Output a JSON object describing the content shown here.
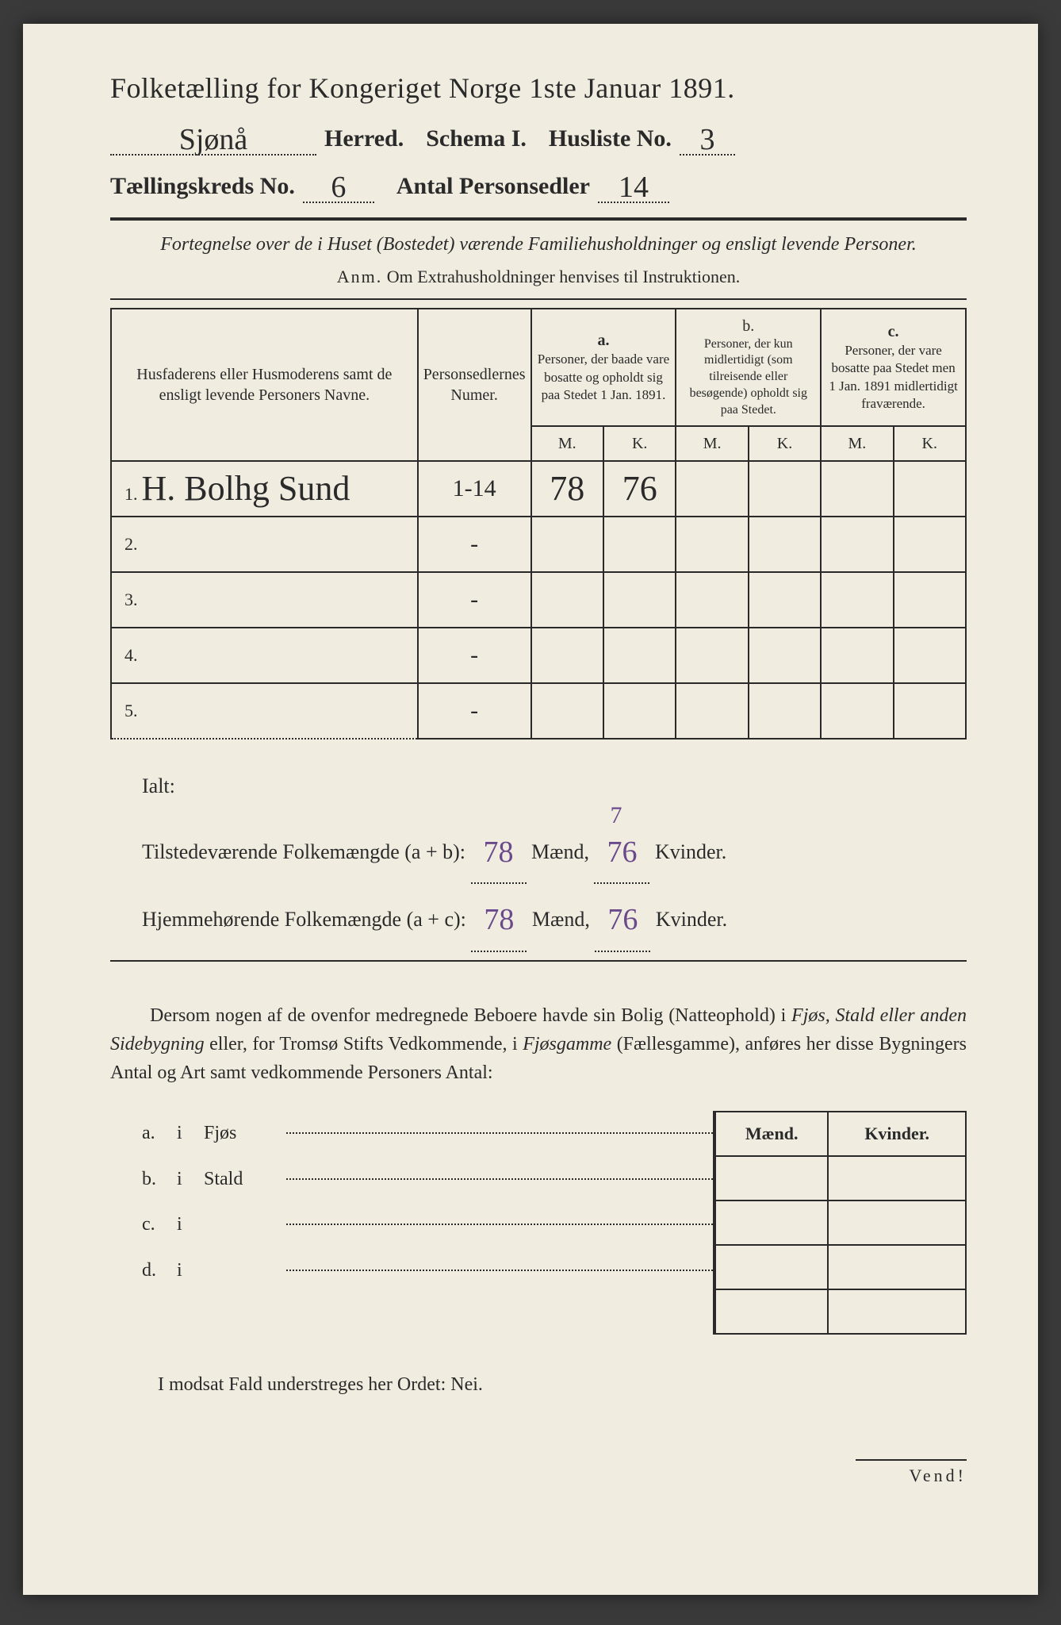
{
  "colors": {
    "paper": "#f0ede0",
    "ink": "#2a2a2a",
    "handwriting_purple": "#6a4a8a",
    "background": "#3a3a3a"
  },
  "typography": {
    "title_fontsize": 36,
    "body_fontsize": 24,
    "handwritten_fontsize": 38
  },
  "header": {
    "title": "Folketælling for Kongeriget Norge 1ste Januar 1891.",
    "herred_value": "Sjønå",
    "herred_label": "Herred.",
    "schema_label": "Schema I.",
    "husliste_label": "Husliste No.",
    "husliste_value": "3",
    "kreds_label": "Tællingskreds No.",
    "kreds_value": "6",
    "antal_label": "Antal Personsedler",
    "antal_value": "14"
  },
  "subtitle": "Fortegnelse over de i Huset (Bostedet) værende Familiehusholdninger og ensligt levende Personer.",
  "anm_label": "Anm.",
  "anm_text": "Om Extrahusholdninger henvises til Instruktionen.",
  "table": {
    "col_name": "Husfaderens eller Husmoderens samt de ensligt levende Personers Navne.",
    "col_num": "Personsedlernes Numer.",
    "col_a_label": "a.",
    "col_a": "Personer, der baade vare bosatte og opholdt sig paa Stedet 1 Jan. 1891.",
    "col_b_label": "b.",
    "col_b": "Personer, der kun midlertidigt (som tilreisende eller besøgende) opholdt sig paa Stedet.",
    "col_c_label": "c.",
    "col_c": "Personer, der vare bosatte paa Stedet men 1 Jan. 1891 midlertidigt fraværende.",
    "m": "M.",
    "k": "K.",
    "rows": [
      {
        "n": "1.",
        "name": "H. Bolhg Sund",
        "num": "1-14",
        "a_m": "78",
        "a_k": "76",
        "b_m": "",
        "b_k": "",
        "c_m": "",
        "c_k": ""
      },
      {
        "n": "2.",
        "name": "",
        "num": "-",
        "a_m": "",
        "a_k": "",
        "b_m": "",
        "b_k": "",
        "c_m": "",
        "c_k": ""
      },
      {
        "n": "3.",
        "name": "",
        "num": "-",
        "a_m": "",
        "a_k": "",
        "b_m": "",
        "b_k": "",
        "c_m": "",
        "c_k": ""
      },
      {
        "n": "4.",
        "name": "",
        "num": "-",
        "a_m": "",
        "a_k": "",
        "b_m": "",
        "b_k": "",
        "c_m": "",
        "c_k": ""
      },
      {
        "n": "5.",
        "name": "",
        "num": "-",
        "a_m": "",
        "a_k": "",
        "b_m": "",
        "b_k": "",
        "c_m": "",
        "c_k": ""
      }
    ]
  },
  "totals": {
    "ialt": "Ialt:",
    "tilstede_label": "Tilstedeværende Folkemængde (a + b):",
    "hjemme_label": "Hjemmehørende Folkemængde (a + c):",
    "maend": "Mænd,",
    "kvinder": "Kvinder.",
    "t_m": "78",
    "t_k": "76",
    "h_m": "78",
    "h_k": "76",
    "t_k_over": "7",
    "h_k_over": ""
  },
  "paragraph": {
    "text1": "Dersom nogen af de ovenfor medregnede Beboere havde sin Bolig (Natteophold) i ",
    "text2": "Fjøs, Stald eller anden Sidebygning",
    "text3": " eller, for Tromsø Stifts Vedkommende, i ",
    "text4": "Fjøsgamme",
    "text5": " (Fællesgamme), anføres her disse Bygningers Antal og Art samt vedkommende Personers Antal:"
  },
  "bottom": {
    "maend": "Mænd.",
    "kvinder": "Kvinder.",
    "rows": [
      {
        "label": "a.",
        "i": "i",
        "name": "Fjøs"
      },
      {
        "label": "b.",
        "i": "i",
        "name": "Stald"
      },
      {
        "label": "c.",
        "i": "i",
        "name": ""
      },
      {
        "label": "d.",
        "i": "i",
        "name": ""
      }
    ]
  },
  "nei_line": "I modsat Fald understreges her Ordet: Nei.",
  "vend": "Vend!"
}
